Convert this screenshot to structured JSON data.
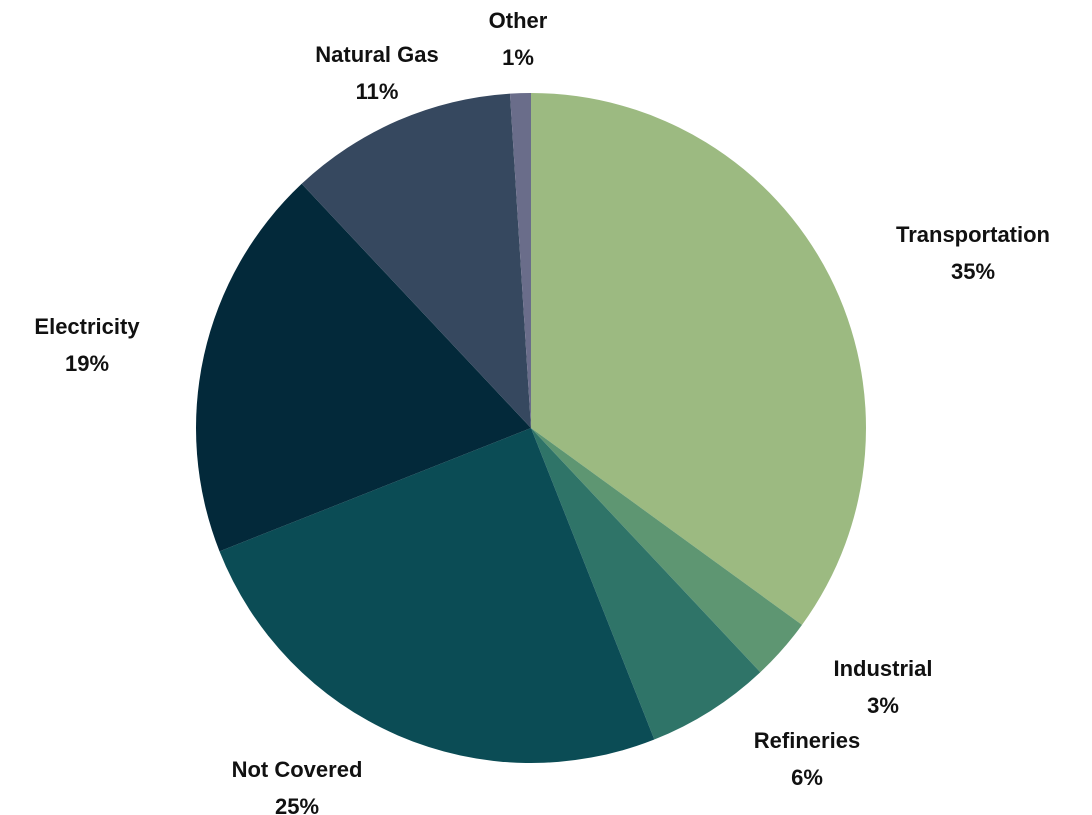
{
  "chart_data": {
    "type": "pie",
    "title": "",
    "start_angle_deg": 0,
    "direction": "clockwise",
    "legend": "none",
    "slices": [
      {
        "label": "Transportation",
        "value": 35,
        "display": "35%",
        "color": "#9cba81"
      },
      {
        "label": "Industrial",
        "value": 3,
        "display": "3%",
        "color": "#5e9672"
      },
      {
        "label": "Refineries",
        "value": 6,
        "display": "6%",
        "color": "#2f7468"
      },
      {
        "label": "Not Covered",
        "value": 25,
        "display": "25%",
        "color": "#0b4c55"
      },
      {
        "label": "Electricity",
        "value": 19,
        "display": "19%",
        "color": "#03293a"
      },
      {
        "label": "Natural Gas",
        "value": 11,
        "display": "11%",
        "color": "#36485f"
      },
      {
        "label": "Other",
        "value": 1,
        "display": "1%",
        "color": "#6a6d8a"
      }
    ]
  }
}
